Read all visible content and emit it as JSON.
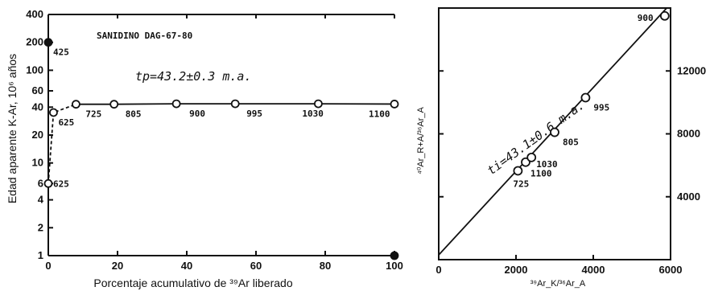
{
  "chart_data": [
    {
      "type": "line",
      "title": "SANIDINO DAG-67-80",
      "annotation": "tp=43.2±0.3 m.a.",
      "xlabel": "Porcentaje acumulativo de ³⁹Ar liberado",
      "ylabel": "Edad aparente K-Ar, 10⁶ años",
      "y_scale": "log",
      "xlim": [
        0,
        100
      ],
      "ylim": [
        1,
        400
      ],
      "x_ticks": [
        "0",
        "20",
        "40",
        "60",
        "80",
        "100"
      ],
      "y_ticks": [
        {
          "value": 1,
          "label": "1"
        },
        {
          "value": 2,
          "label": "2"
        },
        {
          "value": 4,
          "label": "4"
        },
        {
          "value": 6,
          "label": "6"
        },
        {
          "value": 10,
          "label": "10"
        },
        {
          "value": 20,
          "label": "20"
        },
        {
          "value": 40,
          "label": "40"
        },
        {
          "value": 60,
          "label": "60"
        },
        {
          "value": 100,
          "label": "100"
        },
        {
          "value": 200,
          "label": "200"
        },
        {
          "value": 400,
          "label": "400"
        }
      ],
      "series": [
        {
          "points": [
            {
              "x": 0,
              "y": 200,
              "label": "425",
              "style": "filled"
            },
            {
              "x": 0,
              "y": 6,
              "label": "625",
              "style": "open"
            },
            {
              "x": 1.5,
              "y": 35,
              "label": "625",
              "style": "open"
            },
            {
              "x": 8,
              "y": 43,
              "label": "725",
              "style": "open"
            },
            {
              "x": 19,
              "y": 43,
              "label": "805",
              "style": "open"
            },
            {
              "x": 37,
              "y": 43.5,
              "label": "900",
              "style": "open"
            },
            {
              "x": 54,
              "y": 43.5,
              "label": "995",
              "style": "open"
            },
            {
              "x": 78,
              "y": 43.5,
              "label": "1030",
              "style": "open"
            },
            {
              "x": 100,
              "y": 43.2,
              "label": "1100",
              "style": "open"
            },
            {
              "x": 100,
              "y": 1,
              "label": "",
              "style": "filled"
            }
          ]
        }
      ]
    },
    {
      "type": "scatter",
      "annotation": "ti=43.1±0.6 m.a.",
      "xlabel": "³⁹Ar_K/³⁶Ar_A",
      "ylabel": "⁴⁰Ar_R+A/³⁶Ar_A",
      "xlim": [
        0,
        6000
      ],
      "ylim": [
        0,
        16000
      ],
      "x_ticks": [
        "0",
        "2000",
        "4000",
        "6000"
      ],
      "y_ticks": [
        "4000",
        "8000",
        "12000"
      ],
      "isochron": {
        "x": [
          0,
          5900
        ],
        "y": [
          300,
          16000
        ]
      },
      "points": [
        {
          "x": 2050,
          "y": 5650,
          "label": "725"
        },
        {
          "x": 2250,
          "y": 6200,
          "label": "1100"
        },
        {
          "x": 2400,
          "y": 6500,
          "label": "1030"
        },
        {
          "x": 3000,
          "y": 8100,
          "label": "805"
        },
        {
          "x": 3800,
          "y": 10300,
          "label": "995"
        },
        {
          "x": 5850,
          "y": 15500,
          "label": "900"
        }
      ]
    }
  ]
}
